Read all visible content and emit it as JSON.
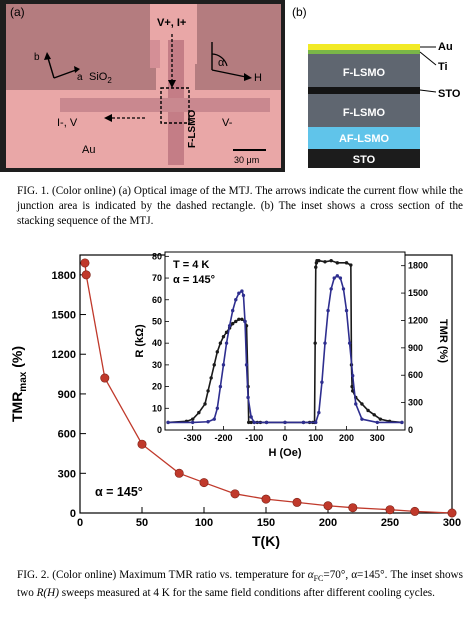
{
  "fig1": {
    "panel_a_label": "(a)",
    "panel_b_label": "(b)",
    "optical": {
      "top_label": "V+, I+",
      "left_label": "I-, V",
      "right_label": "V-",
      "substrate_label": "SiO",
      "substrate_sub": "2",
      "electrode_label": "Au",
      "strip_label": "F-LSMO",
      "axis_a": "a",
      "axis_b": "b",
      "alpha": "α",
      "field": "H",
      "scale_label": "30 μm"
    },
    "stack": {
      "layers": [
        "F-LSMO",
        "F-LSMO",
        "AF-LSMO",
        "STO"
      ],
      "side_labels": [
        "Au",
        "Ti",
        "STO"
      ]
    },
    "caption": "FIG. 1. (Color online) (a) Optical image of the MTJ. The arrows indicate the current flow while the junction area is indicated by the dashed rectangle. (b) The inset shows a cross section of the stacking sequence of the MTJ."
  },
  "fig2": {
    "caption_prefix": "FIG. 2. (Color online) Maximum TMR ratio vs. temperature for ",
    "caption_alpha_fc": "α",
    "caption_alpha_fc_sub": "FC",
    "caption_mid": "=70°, α=145°. The inset shows two ",
    "caption_rh": "R(H)",
    "caption_suffix": " sweeps measured at 4 K for the same field conditions after different cooling cycles.",
    "annotation": "α = 145°"
  },
  "chart_data": [
    {
      "type": "line",
      "x": [
        4,
        5,
        20,
        50,
        80,
        100,
        125,
        150,
        175,
        200,
        220,
        250,
        270,
        300
      ],
      "series": [
        {
          "values": [
            1890,
            1800,
            1020,
            520,
            300,
            230,
            145,
            105,
            80,
            55,
            40,
            25,
            12,
            0
          ]
        }
      ],
      "xlabel": "T(K)",
      "ylabel": "TMR",
      "ylabel_sub": "max",
      "ylabel_unit": " (%)",
      "xlim": [
        0,
        300
      ],
      "ylim": [
        0,
        1950
      ],
      "xticks": [
        0,
        50,
        100,
        150,
        200,
        250,
        300
      ],
      "yticks": [
        0,
        300,
        600,
        900,
        1200,
        1500,
        1800
      ],
      "color": "#c0392b"
    },
    {
      "type": "line",
      "inset": true,
      "annotation_lines": [
        "T = 4 K",
        "α = 145°"
      ],
      "xlabel": "H (Oe)",
      "ylabel": "R (kΩ)",
      "ylabel_right": "TMR (%)",
      "xlim": [
        -390,
        390
      ],
      "ylim": [
        0,
        82
      ],
      "ylim_right": [
        0,
        1950
      ],
      "xticks": [
        -300,
        -200,
        -100,
        0,
        100,
        200,
        300
      ],
      "yticks": [
        0,
        10,
        20,
        30,
        40,
        50,
        60,
        70,
        80
      ],
      "yticks_right": [
        0,
        300,
        600,
        900,
        1200,
        1500,
        1800
      ],
      "series": [
        {
          "color": "#1a1a1a",
          "x": [
            -380,
            -320,
            -300,
            -280,
            -260,
            -250,
            -240,
            -230,
            -220,
            -210,
            -200,
            -190,
            -180,
            -170,
            -160,
            -150,
            -140,
            -130,
            -125,
            -120,
            -118,
            -110,
            -100,
            -90,
            -80,
            -60,
            0,
            60,
            80,
            90,
            96,
            98,
            100,
            102,
            104,
            110,
            130,
            150,
            170,
            200,
            214,
            216,
            218,
            220,
            230,
            250,
            270,
            290,
            310,
            340,
            380
          ],
          "values": [
            3.5,
            4,
            5,
            8,
            12,
            18,
            24,
            30,
            36,
            40,
            43,
            45,
            47,
            49,
            50,
            51,
            51,
            50,
            48,
            20,
            3.5,
            3.5,
            3.5,
            3.5,
            3.5,
            3.5,
            3.5,
            3.5,
            3.5,
            3.5,
            3.5,
            40,
            75,
            77,
            78,
            78,
            77.5,
            78,
            77,
            77,
            76,
            30,
            20,
            18,
            15,
            12,
            9,
            7,
            5,
            4,
            3.5
          ]
        },
        {
          "color": "#2e2e8f",
          "x": [
            -380,
            -300,
            -250,
            -230,
            -220,
            -210,
            -200,
            -190,
            -180,
            -170,
            -160,
            -150,
            -140,
            -135,
            -130,
            -125,
            -120,
            -110,
            -100,
            -60,
            0,
            60,
            100,
            110,
            120,
            130,
            140,
            150,
            160,
            170,
            180,
            190,
            200,
            210,
            220,
            230,
            250,
            300,
            380
          ],
          "values": [
            3.5,
            3.5,
            3.8,
            5,
            10,
            20,
            30,
            40,
            48,
            55,
            60,
            63,
            64,
            62,
            50,
            30,
            15,
            6,
            3.5,
            3.5,
            3.5,
            3.5,
            3.5,
            8,
            22,
            40,
            55,
            65,
            70,
            71,
            70,
            65,
            55,
            40,
            25,
            12,
            5,
            3.5,
            3.5
          ]
        }
      ]
    }
  ]
}
